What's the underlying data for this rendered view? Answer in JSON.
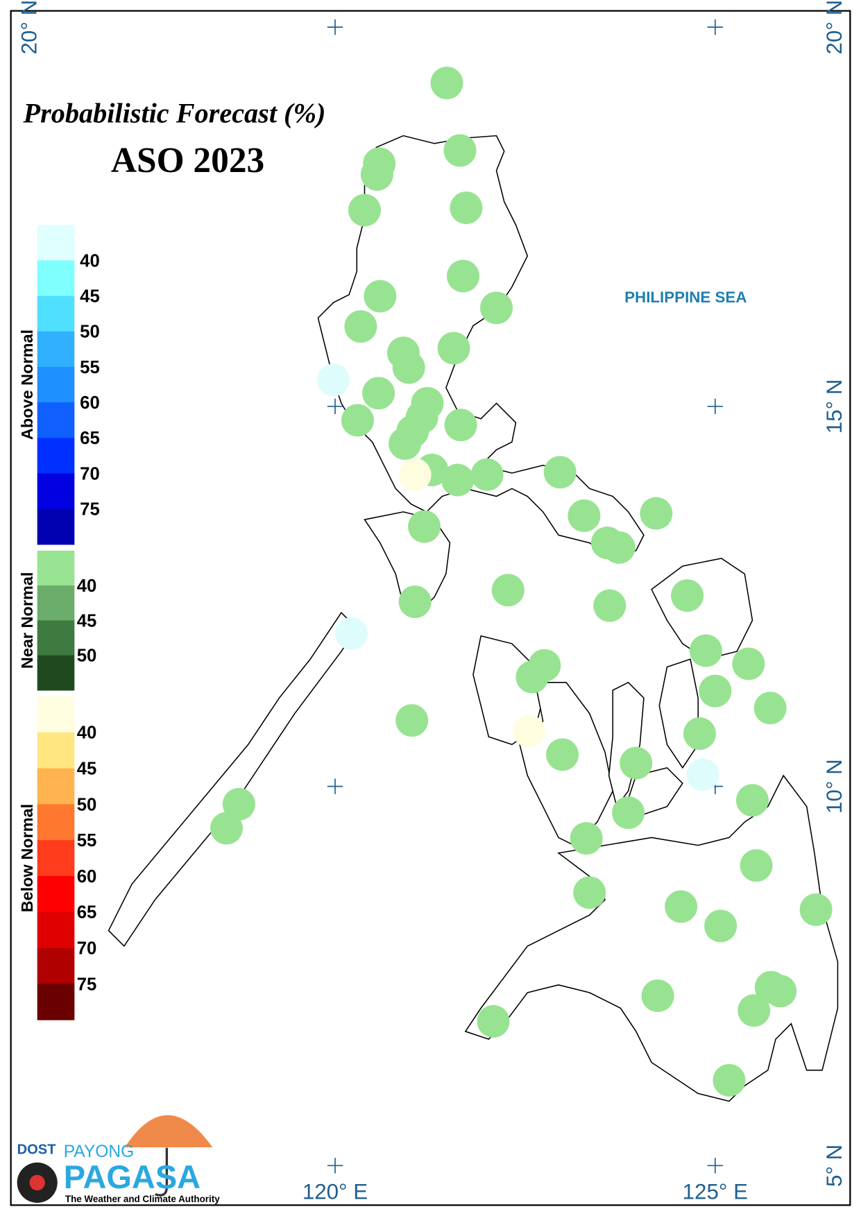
{
  "header": {
    "title": "Probabilistic Forecast (%)",
    "subtitle": "ASO 2023"
  },
  "legend": [
    {
      "title": "Above Normal",
      "ticks": [
        "40",
        "45",
        "50",
        "55",
        "60",
        "65",
        "70",
        "75"
      ]
    },
    {
      "title": "Near Normal",
      "ticks": [
        "40",
        "45",
        "50"
      ]
    },
    {
      "title": "Below Normal",
      "ticks": [
        "40",
        "45",
        "50",
        "55",
        "60",
        "65",
        "70",
        "75"
      ]
    }
  ],
  "map": {
    "latitude_labels": [
      "20° N",
      "15° N",
      "10° N",
      "5° N"
    ],
    "longitude_labels": [
      "120° E",
      "125° E"
    ],
    "sea_label": "PHILIPPINE SEA"
  },
  "logo": {
    "agency": "DOST",
    "brand_top": "PAYONG",
    "brand_main": "PAGASA",
    "tagline": "The Weather and Climate Authority"
  }
}
